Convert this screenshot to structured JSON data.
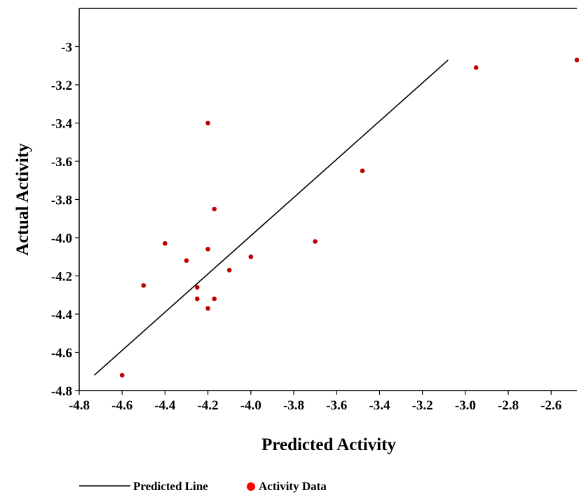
{
  "chart_data": {
    "type": "scatter",
    "xlabel": "Predicted Activity",
    "ylabel": "Actual Activity",
    "xlim": [
      -4.8,
      -2.48
    ],
    "ylim": [
      -4.8,
      -2.8
    ],
    "x_ticks": [
      -4.8,
      -4.6,
      -4.4,
      -4.2,
      -4.0,
      -3.8,
      -3.6,
      -3.4,
      -3.2,
      -3.0,
      -2.8,
      -2.6
    ],
    "x_tick_labels": [
      "-4.8",
      "-4.6",
      "-4.4",
      "-4.2",
      "-4.0",
      "-3.8",
      "-3.6",
      "-3.4",
      "-3.2",
      "-3.0",
      "-2.8",
      "-2.6"
    ],
    "y_ticks": [
      -4.8,
      -4.6,
      -4.4,
      -4.2,
      -4.0,
      -3.8,
      -3.6,
      -3.4,
      -3.2,
      -3.0
    ],
    "y_tick_labels": [
      "-4.8",
      "-4.6",
      "-4.4",
      "-4.2",
      "-4.0",
      "-3.8",
      "-3.6",
      "-3.4",
      "-3.2",
      "-3"
    ],
    "grid": false,
    "legend_position": "bottom",
    "series": [
      {
        "name": "Activity Data",
        "kind": "scatter",
        "color": "#c00000",
        "x": [
          -4.6,
          -4.5,
          -4.4,
          -4.3,
          -4.25,
          -4.25,
          -4.2,
          -4.2,
          -4.2,
          -4.17,
          -4.17,
          -4.1,
          -4.0,
          -3.7,
          -3.48,
          -2.95,
          -2.48
        ],
        "y": [
          -4.72,
          -4.25,
          -4.03,
          -4.12,
          -4.26,
          -4.32,
          -3.4,
          -4.06,
          -4.37,
          -3.85,
          -4.32,
          -4.17,
          -4.1,
          -4.02,
          -3.65,
          -3.11,
          -3.07
        ]
      },
      {
        "name": "Predicted Line",
        "kind": "line",
        "color": "#000000",
        "x": [
          -4.73,
          -3.08
        ],
        "y": [
          -4.72,
          -3.07
        ]
      }
    ],
    "legend": [
      {
        "label": "Predicted Line",
        "symbol": "line",
        "color": "#000000"
      },
      {
        "label": "Activity Data",
        "symbol": "dot",
        "color": "#ff0000"
      }
    ]
  }
}
